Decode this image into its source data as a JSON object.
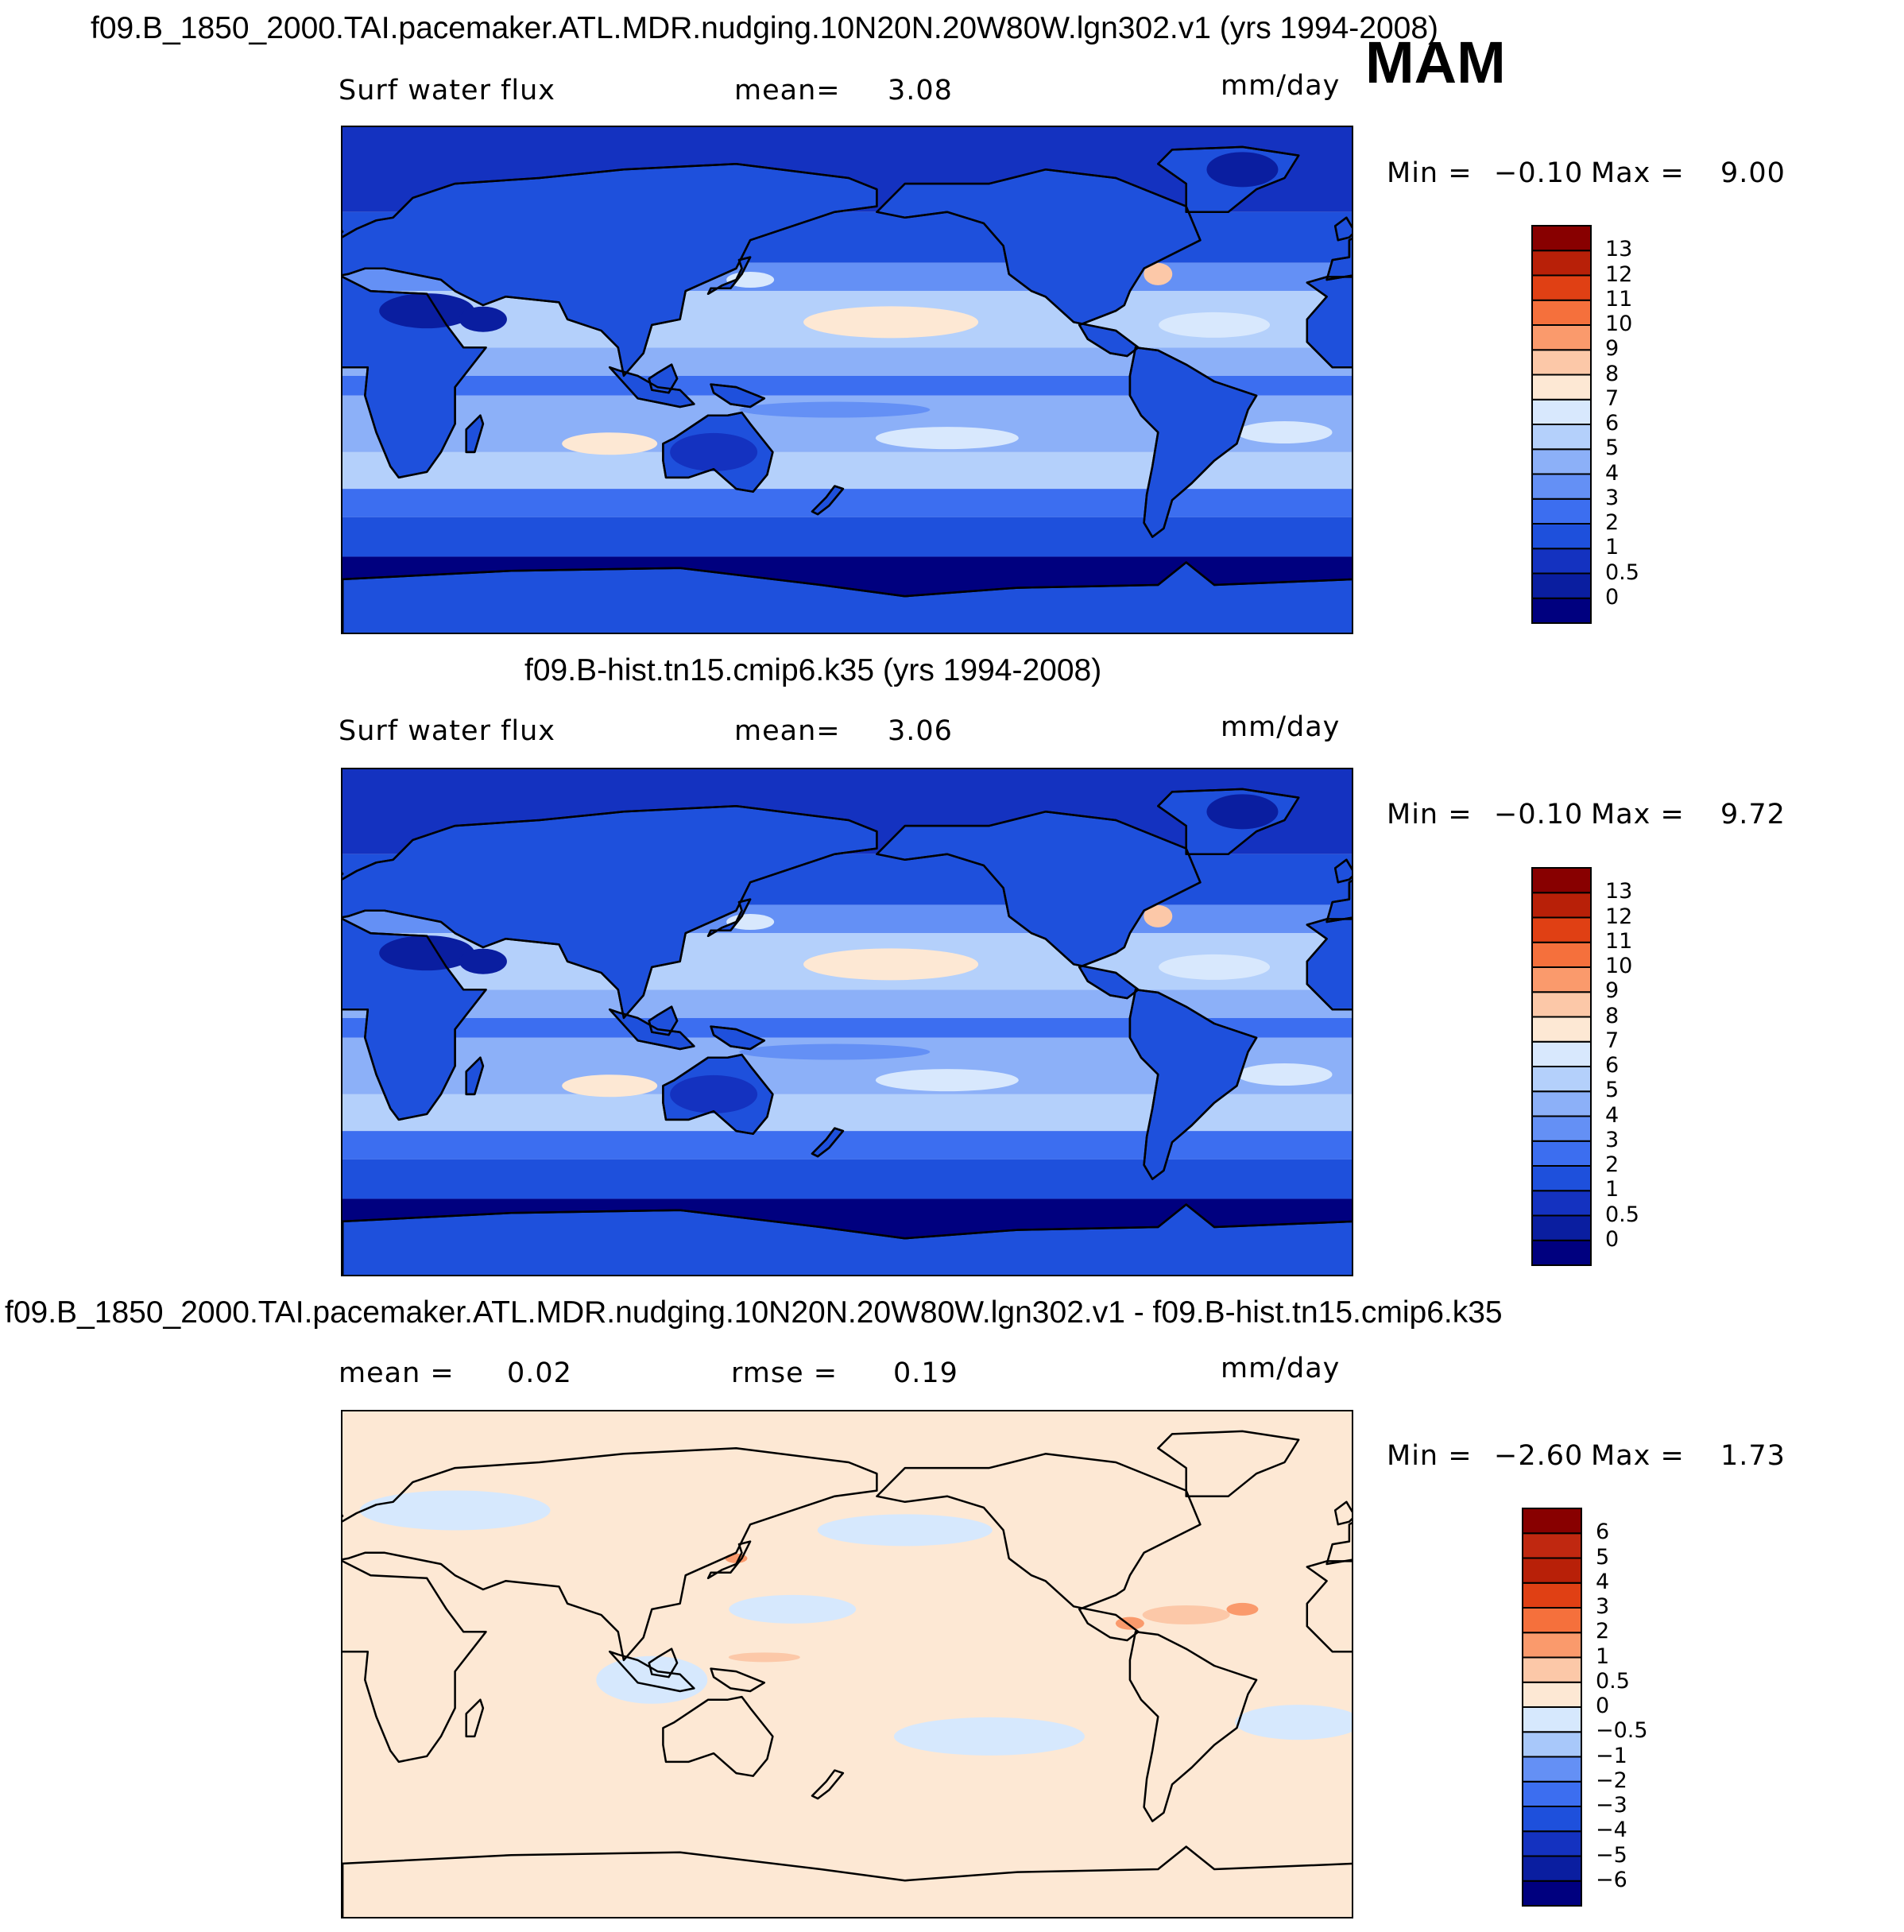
{
  "season": "MAM",
  "units": "mm/day",
  "panels": [
    {
      "title": "f09.B_1850_2000.TAI.pacemaker.ATL.MDR.nudging.10N20N.20W80W.lgn302.v1 (yrs 1994-2008)",
      "left_label": "Surf water flux",
      "stat_label": "mean=",
      "stat_value": "3.08",
      "min_label": "Min =",
      "min_value": "−0.10",
      "max_label": "Max =",
      "max_value": "9.00",
      "levels": [
        "0",
        "0.5",
        "1",
        "2",
        "3",
        "4",
        "5",
        "6",
        "7",
        "8",
        "9",
        "10",
        "11",
        "12",
        "13"
      ],
      "colors": [
        "#00007f",
        "#0a1ea0",
        "#1432c0",
        "#1e50dc",
        "#3c6ef0",
        "#6490f5",
        "#8cb0f8",
        "#b4d0fb",
        "#d8e8fd",
        "#fde8d4",
        "#fcc8a8",
        "#fa9a6c",
        "#f5703c",
        "#e04014",
        "#b82008",
        "#880000"
      ]
    },
    {
      "title": "f09.B-hist.tn15.cmip6.k35 (yrs 1994-2008)",
      "left_label": "Surf water flux",
      "stat_label": "mean=",
      "stat_value": "3.06",
      "min_label": "Min =",
      "min_value": "−0.10",
      "max_label": "Max =",
      "max_value": "9.72",
      "levels": [
        "0",
        "0.5",
        "1",
        "2",
        "3",
        "4",
        "5",
        "6",
        "7",
        "8",
        "9",
        "10",
        "11",
        "12",
        "13"
      ],
      "colors": [
        "#00007f",
        "#0a1ea0",
        "#1432c0",
        "#1e50dc",
        "#3c6ef0",
        "#6490f5",
        "#8cb0f8",
        "#b4d0fb",
        "#d8e8fd",
        "#fde8d4",
        "#fcc8a8",
        "#fa9a6c",
        "#f5703c",
        "#e04014",
        "#b82008",
        "#880000"
      ]
    },
    {
      "title": "f09.B_1850_2000.TAI.pacemaker.ATL.MDR.nudging.10N20N.20W80W.lgn302.v1 - f09.B-hist.tn15.cmip6.k35",
      "left_label": "mean =",
      "left_value": "0.02",
      "stat_label": "rmse =",
      "stat_value": "0.19",
      "min_label": "Min =",
      "min_value": "−2.60",
      "max_label": "Max =",
      "max_value": "1.73",
      "levels": [
        "−6",
        "−5",
        "−4",
        "−3",
        "−2",
        "−1",
        "−0.5",
        "0",
        "0.5",
        "1",
        "2",
        "3",
        "4",
        "5",
        "6"
      ],
      "colors": [
        "#00007f",
        "#0a1ea0",
        "#1432c0",
        "#1e50dc",
        "#3c6ef0",
        "#6490f5",
        "#a8c8fa",
        "#d6e8fd",
        "#fde8d4",
        "#fcc8a8",
        "#fa9a6c",
        "#f5703c",
        "#e04014",
        "#b82008",
        "#c02810",
        "#880000"
      ]
    }
  ]
}
